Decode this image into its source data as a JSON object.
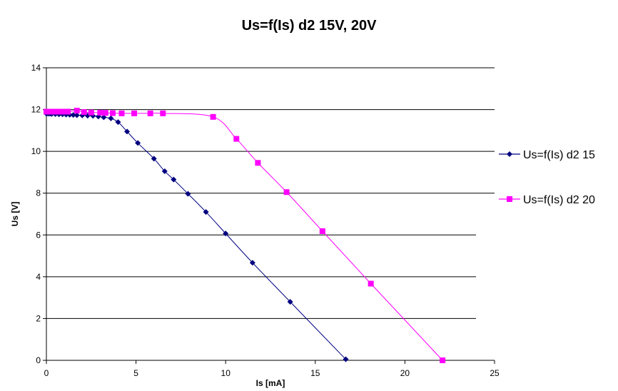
{
  "chart_data": {
    "type": "line",
    "title": "Us=f(Is) d2 15V, 20V",
    "xlabel": "Is [mA]",
    "ylabel": "Us [V]",
    "xlim": [
      0,
      25
    ],
    "ylim": [
      0,
      14
    ],
    "xticks": [
      "0",
      "5",
      "10",
      "15",
      "20",
      "25"
    ],
    "yticks": [
      "0",
      "2",
      "4",
      "6",
      "8",
      "10",
      "12",
      "14"
    ],
    "grid": "horizontal",
    "legend_position": "right",
    "series": [
      {
        "name": "Us=f(Is) d2 15",
        "color": "#000080",
        "marker": "diamond",
        "points": [
          [
            0.0,
            11.8
          ],
          [
            0.1,
            11.8
          ],
          [
            0.2,
            11.8
          ],
          [
            0.3,
            11.79
          ],
          [
            0.5,
            11.78
          ],
          [
            0.7,
            11.77
          ],
          [
            0.9,
            11.77
          ],
          [
            1.1,
            11.76
          ],
          [
            1.3,
            11.75
          ],
          [
            1.5,
            11.74
          ],
          [
            1.7,
            11.73
          ],
          [
            2.0,
            11.72
          ],
          [
            2.3,
            11.71
          ],
          [
            2.6,
            11.7
          ],
          [
            2.9,
            11.67
          ],
          [
            3.2,
            11.63
          ],
          [
            3.6,
            11.58
          ],
          [
            4.0,
            11.4
          ],
          [
            4.5,
            10.95
          ],
          [
            5.1,
            10.4
          ],
          [
            6.0,
            9.65
          ],
          [
            6.6,
            9.05
          ],
          [
            7.1,
            8.65
          ],
          [
            7.9,
            7.97
          ],
          [
            8.9,
            7.1
          ],
          [
            10.0,
            6.07
          ],
          [
            11.5,
            4.67
          ],
          [
            13.6,
            2.8
          ],
          [
            16.7,
            0.05
          ]
        ]
      },
      {
        "name": "Us=f(Is) d2 20",
        "color": "#ff00ff",
        "marker": "square",
        "points": [
          [
            0.0,
            11.9
          ],
          [
            0.3,
            11.9
          ],
          [
            0.6,
            11.9
          ],
          [
            0.9,
            11.9
          ],
          [
            1.2,
            11.9
          ],
          [
            1.7,
            11.95
          ],
          [
            2.1,
            11.88
          ],
          [
            2.5,
            11.86
          ],
          [
            3.0,
            11.85
          ],
          [
            3.3,
            11.84
          ],
          [
            3.7,
            11.83
          ],
          [
            4.2,
            11.82
          ],
          [
            4.9,
            11.82
          ],
          [
            5.8,
            11.82
          ],
          [
            6.5,
            11.82
          ],
          [
            9.3,
            11.65
          ],
          [
            10.6,
            10.6
          ],
          [
            11.8,
            9.45
          ],
          [
            13.4,
            8.05
          ],
          [
            15.4,
            6.18
          ],
          [
            18.1,
            3.67
          ],
          [
            22.1,
            0.0
          ]
        ]
      }
    ]
  }
}
